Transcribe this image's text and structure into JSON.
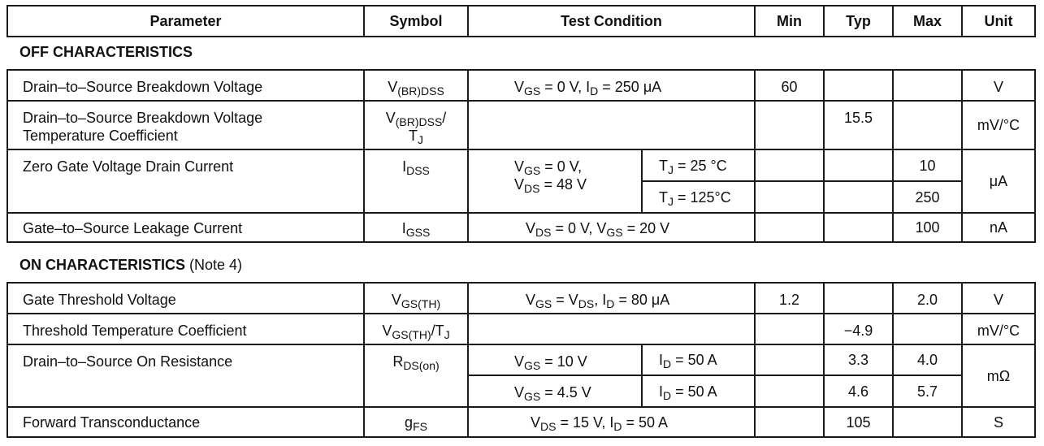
{
  "headers": {
    "parameter": "Parameter",
    "symbol": "Symbol",
    "test_condition": "Test Condition",
    "min": "Min",
    "typ": "Typ",
    "max": "Max",
    "unit": "Unit"
  },
  "sections": {
    "off": {
      "title": "OFF CHARACTERISTICS",
      "note": ""
    },
    "on": {
      "title": "ON CHARACTERISTICS",
      "note": " (Note 4)"
    }
  },
  "off_rows": [
    {
      "param": "Drain–to–Source Breakdown Voltage",
      "sym_main": "V",
      "sym_sub": "(BR)DSS",
      "tc": {
        "a": "V",
        "a_sub": "GS",
        "b": " = 0 V, I",
        "b_sub": "D",
        "c": " = 250 μA"
      },
      "min": "60",
      "typ": "",
      "max": "",
      "unit": "V"
    },
    {
      "param_l1": "Drain–to–Source Breakdown Voltage",
      "param_l2": "Temperature Coefficient",
      "sym_main": "V",
      "sym_sub": "(BR)DSS",
      "sym_tail": "/",
      "sym_l2": "T",
      "sym_l2_sub": "J",
      "min": "",
      "typ": "15.5",
      "max": "",
      "unit": "mV/°C"
    },
    {
      "param": "Zero Gate Voltage Drain Current",
      "sym_main": "I",
      "sym_sub": "DSS",
      "tc_l1_a": "V",
      "tc_l1_sub": "GS",
      "tc_l1_b": " = 0 V,",
      "tc_l2_a": "V",
      "tc_l2_sub": "DS",
      "tc_l2_b": " = 48 V",
      "sub1": {
        "tj": "T",
        "tj_sub": "J",
        "tj_val": " = 25 °C",
        "min": "",
        "typ": "",
        "max": "10"
      },
      "sub2": {
        "tj": "T",
        "tj_sub": "J",
        "tj_val": " = 125°C",
        "min": "",
        "typ": "",
        "max": "250"
      },
      "unit": "μA"
    },
    {
      "param": "Gate–to–Source Leakage Current",
      "sym_main": "I",
      "sym_sub": "GSS",
      "tc": {
        "a": "V",
        "a_sub": "DS",
        "b": " = 0 V, V",
        "b_sub": "GS",
        "c": " = 20 V"
      },
      "min": "",
      "typ": "",
      "max": "100",
      "unit": "nA"
    }
  ],
  "on_rows": [
    {
      "param": "Gate Threshold Voltage",
      "sym_main": "V",
      "sym_sub": "GS(TH)",
      "tc": {
        "a": "V",
        "a_sub": "GS",
        "b": " = V",
        "b_sub": "DS",
        "c": ", I",
        "c_sub": "D",
        "d": " = 80 μA"
      },
      "min": "1.2",
      "typ": "",
      "max": "2.0",
      "unit": "V"
    },
    {
      "param": "Threshold Temperature Coefficient",
      "sym_main": "V",
      "sym_sub": "GS(TH)",
      "sym_tail": "/T",
      "sym_tail_sub": "J",
      "min": "",
      "typ": "−4.9",
      "max": "",
      "unit": "mV/°C"
    },
    {
      "param": "Drain–to–Source On Resistance",
      "sym_main": "R",
      "sym_sub": "DS(on)",
      "sub1": {
        "vgs": "V",
        "vgs_sub": "GS",
        "vgs_val": " = 10 V",
        "id": "I",
        "id_sub": "D",
        "id_val": " = 50 A",
        "min": "",
        "typ": "3.3",
        "max": "4.0"
      },
      "sub2": {
        "vgs": "V",
        "vgs_sub": "GS",
        "vgs_val": " = 4.5 V",
        "id": "I",
        "id_sub": "D",
        "id_val": " = 50 A",
        "min": "",
        "typ": "4.6",
        "max": "5.7"
      },
      "unit": "mΩ"
    },
    {
      "param": "Forward Transconductance",
      "sym_main": "g",
      "sym_sub": "FS",
      "tc": {
        "a": "V",
        "a_sub": "DS",
        "b": " = 15 V, I",
        "b_sub": "D",
        "c": " = 50 A"
      },
      "min": "",
      "typ": "105",
      "max": "",
      "unit": "S"
    }
  ]
}
